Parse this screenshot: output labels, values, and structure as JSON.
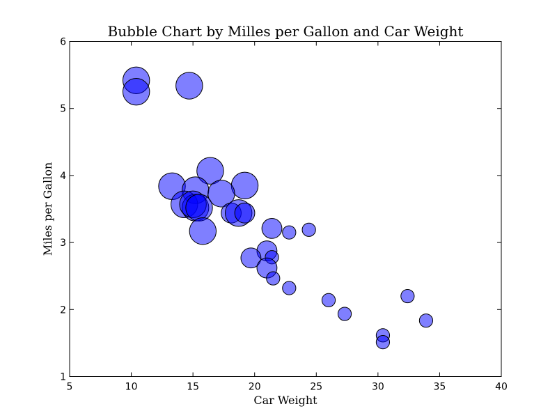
{
  "chart_data": {
    "type": "scatter",
    "title": "Bubble Chart by Milles per Gallon and  Car Weight",
    "xlabel": "Car Weight",
    "ylabel": "Miles per Gallon",
    "xlim": [
      5,
      40
    ],
    "ylim": [
      1,
      6
    ],
    "xticks": [
      5,
      10,
      15,
      20,
      25,
      30,
      35,
      40
    ],
    "yticks": [
      1,
      2,
      3,
      4,
      5,
      6
    ],
    "grid": false,
    "marker_color": "#0000ff",
    "marker_alpha": 0.5,
    "points": [
      {
        "x": 10.4,
        "y": 5.42,
        "size": 8
      },
      {
        "x": 10.4,
        "y": 5.25,
        "size": 8
      },
      {
        "x": 14.7,
        "y": 5.34,
        "size": 8
      },
      {
        "x": 16.4,
        "y": 4.07,
        "size": 8
      },
      {
        "x": 13.3,
        "y": 3.84,
        "size": 8
      },
      {
        "x": 19.2,
        "y": 3.85,
        "size": 8
      },
      {
        "x": 15.2,
        "y": 3.78,
        "size": 8
      },
      {
        "x": 17.3,
        "y": 3.73,
        "size": 8
      },
      {
        "x": 14.3,
        "y": 3.57,
        "size": 8
      },
      {
        "x": 15.2,
        "y": 3.52,
        "size": 8
      },
      {
        "x": 15.0,
        "y": 3.57,
        "size": 8
      },
      {
        "x": 15.5,
        "y": 3.52,
        "size": 8
      },
      {
        "x": 15.8,
        "y": 3.17,
        "size": 8
      },
      {
        "x": 18.1,
        "y": 3.44,
        "size": 6
      },
      {
        "x": 18.7,
        "y": 3.44,
        "size": 8
      },
      {
        "x": 19.2,
        "y": 3.44,
        "size": 6
      },
      {
        "x": 21.4,
        "y": 3.21,
        "size": 6
      },
      {
        "x": 22.8,
        "y": 3.15,
        "size": 4
      },
      {
        "x": 24.4,
        "y": 3.19,
        "size": 4
      },
      {
        "x": 21.0,
        "y": 2.875,
        "size": 6
      },
      {
        "x": 21.4,
        "y": 2.78,
        "size": 4
      },
      {
        "x": 19.7,
        "y": 2.77,
        "size": 6
      },
      {
        "x": 21.0,
        "y": 2.62,
        "size": 6
      },
      {
        "x": 21.5,
        "y": 2.465,
        "size": 4
      },
      {
        "x": 22.8,
        "y": 2.32,
        "size": 4
      },
      {
        "x": 26.0,
        "y": 2.14,
        "size": 4
      },
      {
        "x": 27.3,
        "y": 1.935,
        "size": 4
      },
      {
        "x": 32.4,
        "y": 2.2,
        "size": 4
      },
      {
        "x": 33.9,
        "y": 1.835,
        "size": 4
      },
      {
        "x": 30.4,
        "y": 1.615,
        "size": 4
      },
      {
        "x": 30.4,
        "y": 1.513,
        "size": 4
      }
    ]
  }
}
